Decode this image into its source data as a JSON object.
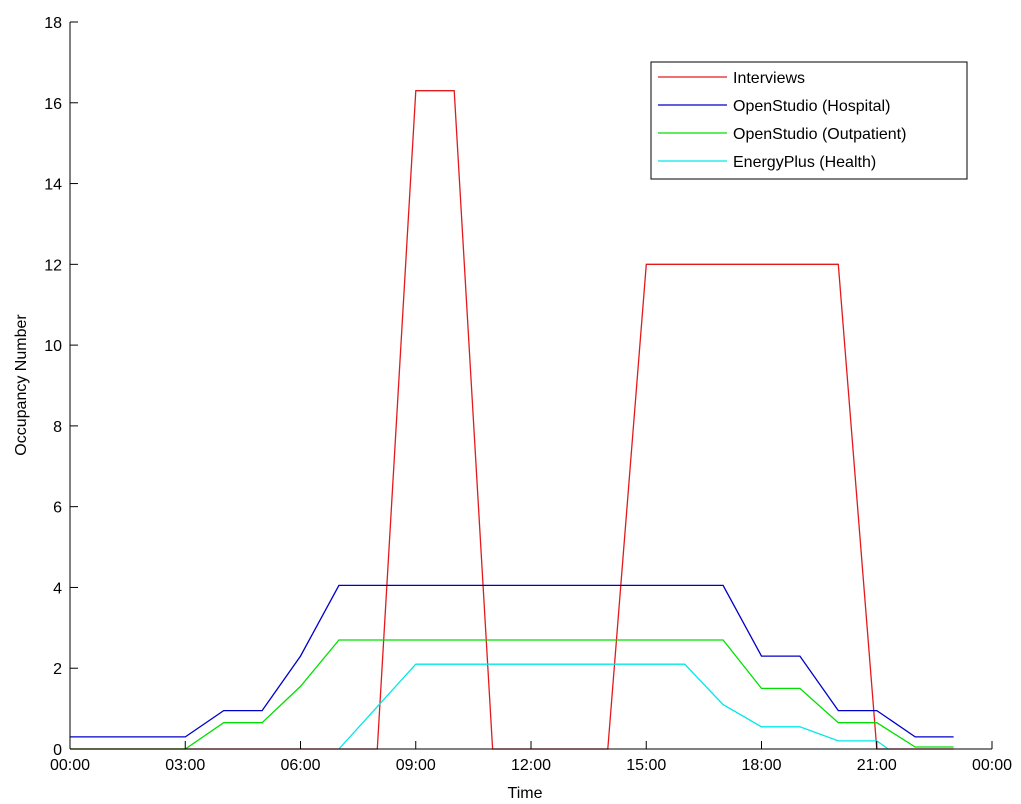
{
  "chart_data": {
    "type": "line",
    "title": "",
    "xlabel": "Time",
    "ylabel": "Occupancy Number",
    "xlim": [
      0,
      24
    ],
    "ylim": [
      0,
      18
    ],
    "xticks": [
      {
        "value": 0,
        "label": "00:00"
      },
      {
        "value": 3,
        "label": "03:00"
      },
      {
        "value": 6,
        "label": "06:00"
      },
      {
        "value": 9,
        "label": "09:00"
      },
      {
        "value": 12,
        "label": "12:00"
      },
      {
        "value": 15,
        "label": "15:00"
      },
      {
        "value": 18,
        "label": "18:00"
      },
      {
        "value": 21,
        "label": "21:00"
      },
      {
        "value": 24,
        "label": "00:00"
      }
    ],
    "yticks": [
      {
        "value": 0,
        "label": "0"
      },
      {
        "value": 2,
        "label": "2"
      },
      {
        "value": 4,
        "label": "4"
      },
      {
        "value": 6,
        "label": "6"
      },
      {
        "value": 8,
        "label": "8"
      },
      {
        "value": 10,
        "label": "10"
      },
      {
        "value": 12,
        "label": "12"
      },
      {
        "value": 14,
        "label": "14"
      },
      {
        "value": 16,
        "label": "16"
      },
      {
        "value": 18,
        "label": "18"
      }
    ],
    "grid": false,
    "legend_position": "top-right",
    "series": [
      {
        "name": "Interviews",
        "color": "#e31a1c",
        "points": [
          [
            0,
            0
          ],
          [
            8,
            0
          ],
          [
            9,
            16.3
          ],
          [
            10,
            16.3
          ],
          [
            11,
            0
          ],
          [
            14,
            0
          ],
          [
            15,
            12
          ],
          [
            20,
            12
          ],
          [
            21,
            0
          ],
          [
            23,
            0
          ]
        ]
      },
      {
        "name": "OpenStudio (Hospital)",
        "color": "#0000c8",
        "points": [
          [
            0,
            0.3
          ],
          [
            3,
            0.3
          ],
          [
            4,
            0.95
          ],
          [
            5,
            0.95
          ],
          [
            6,
            2.3
          ],
          [
            7,
            4.05
          ],
          [
            17,
            4.05
          ],
          [
            18,
            2.3
          ],
          [
            19,
            2.3
          ],
          [
            20,
            0.95
          ],
          [
            21,
            0.95
          ],
          [
            22,
            0.3
          ],
          [
            23,
            0.3
          ]
        ]
      },
      {
        "name": "OpenStudio (Outpatient)",
        "color": "#00e000",
        "points": [
          [
            0,
            0
          ],
          [
            3,
            0
          ],
          [
            4,
            0.65
          ],
          [
            5,
            0.65
          ],
          [
            6,
            1.55
          ],
          [
            7,
            2.7
          ],
          [
            17,
            2.7
          ],
          [
            18,
            1.5
          ],
          [
            19,
            1.5
          ],
          [
            20,
            0.65
          ],
          [
            21,
            0.65
          ],
          [
            22,
            0.05
          ],
          [
            23,
            0.05
          ]
        ]
      },
      {
        "name": "EnergyPlus (Health)",
        "color": "#00e8e8",
        "points": [
          [
            7,
            0
          ],
          [
            9,
            2.1
          ],
          [
            16,
            2.1
          ],
          [
            17,
            1.1
          ],
          [
            18,
            0.55
          ],
          [
            19,
            0.55
          ],
          [
            20,
            0.2
          ],
          [
            21,
            0.2
          ],
          [
            21.3,
            0
          ]
        ]
      }
    ]
  }
}
